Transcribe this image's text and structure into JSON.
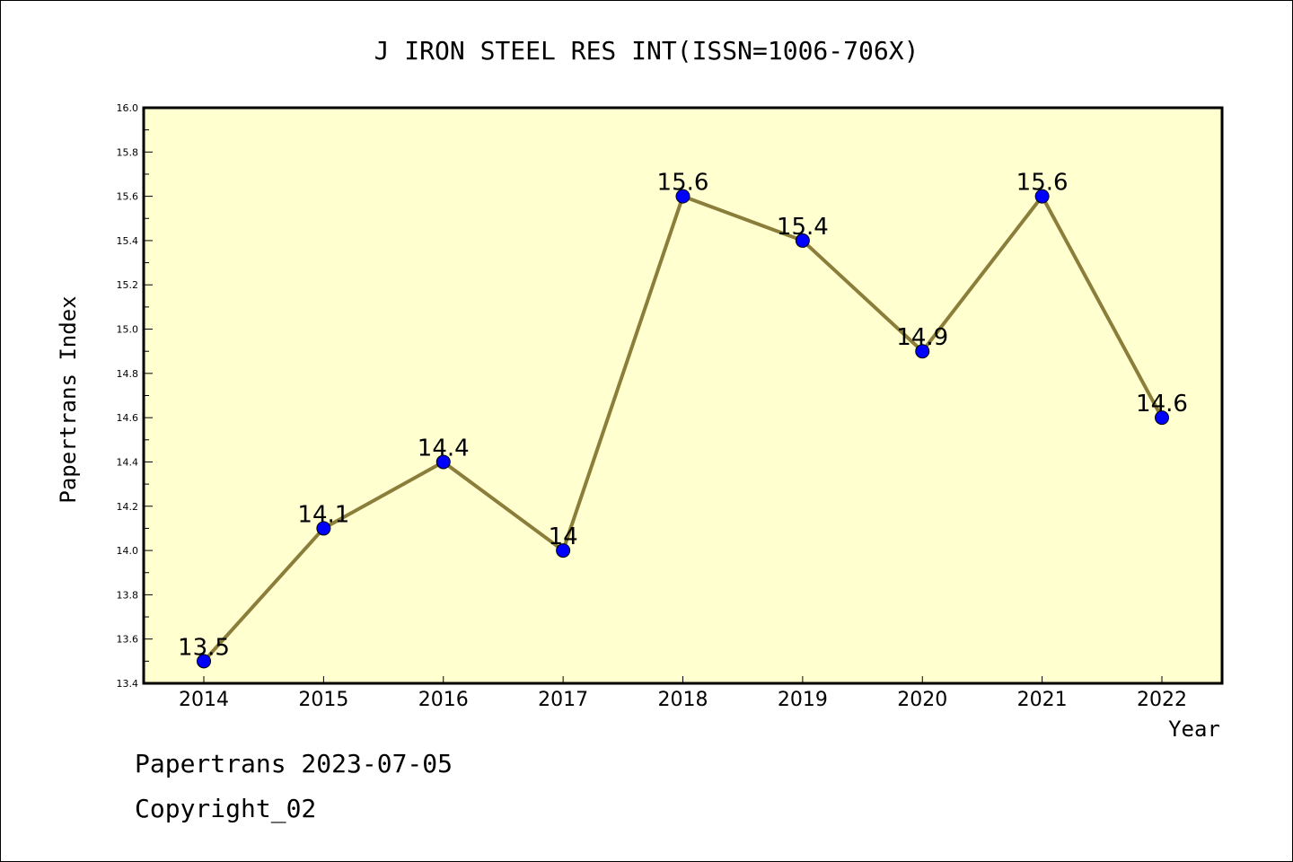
{
  "chart_data": {
    "type": "line",
    "title": "J IRON STEEL RES INT(ISSN=1006-706X)",
    "xlabel": "Year",
    "ylabel": "Papertrans Index",
    "categories": [
      "2014",
      "2015",
      "2016",
      "2017",
      "2018",
      "2019",
      "2020",
      "2021",
      "2022"
    ],
    "series": [
      {
        "values": [
          13.5,
          14.1,
          14.4,
          14.0,
          15.6,
          15.4,
          14.9,
          15.6,
          14.6
        ],
        "labels": [
          "13.5",
          "14.1",
          "14.4",
          "14",
          "15.6",
          "15.4",
          "14.9",
          "15.6",
          "14.6"
        ]
      }
    ],
    "ylim": [
      13.4,
      16.0
    ],
    "yticks": [
      "13.4",
      "13.6",
      "13.8",
      "14.0",
      "14.2",
      "14.4",
      "14.6",
      "14.8",
      "15.0",
      "15.2",
      "15.4",
      "15.6",
      "15.8",
      "16.0"
    ],
    "grid": false,
    "colors": {
      "plot_background": "#ffffd0",
      "line": "#8b7d3a",
      "marker": "#0000ff"
    }
  },
  "footer": {
    "line1": "Papertrans 2023-07-05",
    "line2": "Copyright_02"
  }
}
